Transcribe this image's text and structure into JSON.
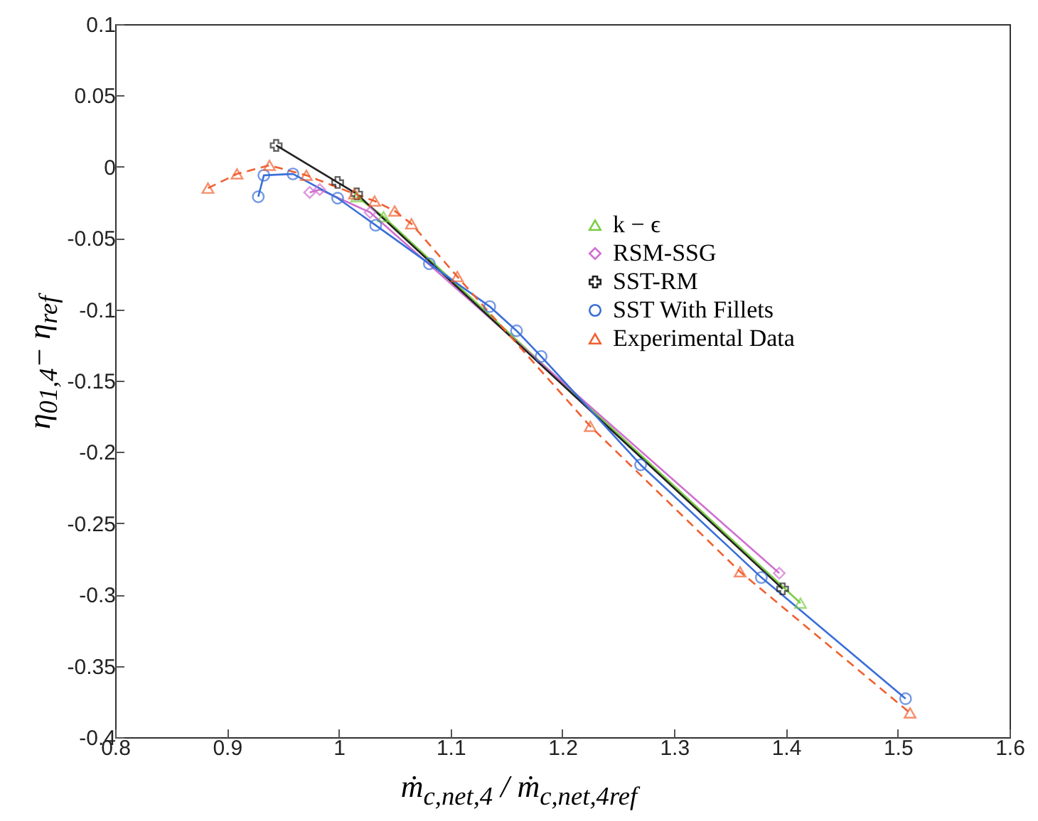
{
  "chart_data": {
    "type": "line",
    "xlabel": "ṁ$_{c,net,4}$ / ṁ$_{c,net,4ref}$",
    "ylabel": "η$_{01,4}$− η$_{ref}$",
    "xlim": [
      0.8,
      1.6
    ],
    "xticks": [
      0.8,
      0.9,
      1,
      1.1,
      1.2,
      1.3,
      1.4,
      1.5,
      1.6
    ],
    "ylim": [
      -0.4,
      0.1
    ],
    "yticks": [
      -0.4,
      -0.35,
      -0.3,
      -0.25,
      -0.2,
      -0.15,
      -0.1,
      -0.05,
      0,
      0.05,
      0.1
    ],
    "grid": false,
    "legend": "top right",
    "series": [
      {
        "name": "k − ϵ",
        "color": "#7ccc44",
        "marker": "triangle",
        "line_style": "solid",
        "x": [
          1.016,
          1.04,
          1.413
        ],
        "values": [
          -0.021,
          -0.035,
          -0.306
        ]
      },
      {
        "name": "RSM-SSG",
        "color": "#d070d0",
        "marker": "diamond",
        "line_style": "solid",
        "x": [
          0.974,
          0.983,
          1.028,
          1.394
        ],
        "values": [
          -0.018,
          -0.016,
          -0.032,
          -0.285
        ]
      },
      {
        "name": "SST-RM",
        "color": "#222222",
        "marker": "cross",
        "line_style": "solid",
        "x": [
          0.944,
          0.999,
          1.016,
          1.397
        ],
        "values": [
          0.015,
          -0.011,
          -0.019,
          -0.296
        ]
      },
      {
        "name": "SST With Fillets",
        "color": "#3a6fd8",
        "marker": "circle",
        "line_style": "solid",
        "x": [
          0.928,
          0.933,
          0.959,
          0.999,
          1.033,
          1.081,
          1.135,
          1.159,
          1.181,
          1.27,
          1.378,
          1.507
        ],
        "values": [
          -0.021,
          -0.006,
          -0.005,
          -0.022,
          -0.041,
          -0.068,
          -0.098,
          -0.115,
          -0.133,
          -0.209,
          -0.288,
          -0.373
        ]
      },
      {
        "name": "Experimental Data",
        "color": "#f06030",
        "marker": "triangle",
        "line_style": "dashed",
        "x": [
          0.883,
          0.909,
          0.938,
          0.971,
          1.014,
          1.032,
          1.05,
          1.065,
          1.106,
          1.225,
          1.359,
          1.511
        ],
        "values": [
          -0.015,
          -0.005,
          0.001,
          -0.006,
          -0.019,
          -0.024,
          -0.031,
          -0.04,
          -0.077,
          -0.182,
          -0.284,
          -0.383
        ]
      }
    ]
  }
}
